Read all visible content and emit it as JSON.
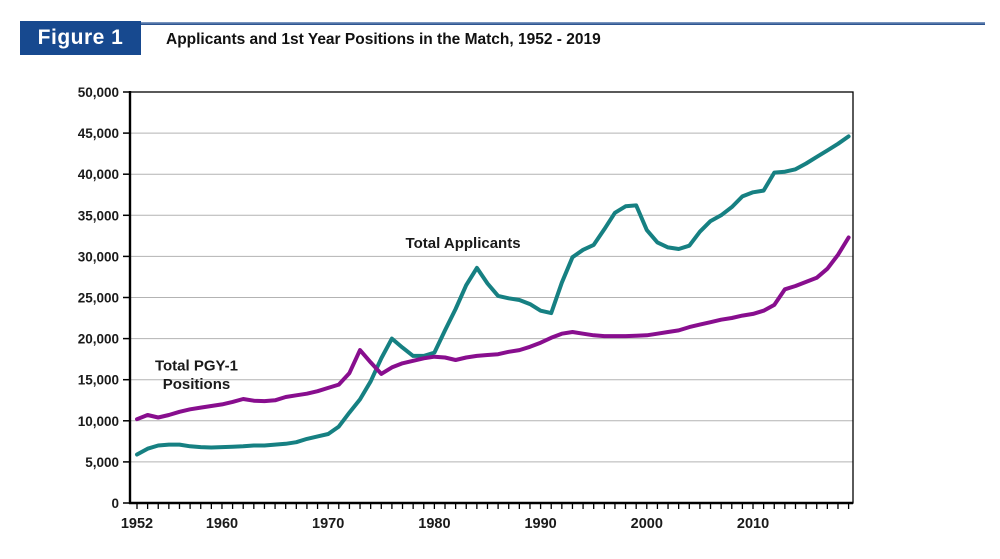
{
  "header": {
    "figure_label": "Figure 1",
    "title": "Applicants and 1st Year Positions in the Match, 1952 - 2019",
    "badge_color": "#17498f"
  },
  "chart_data": {
    "type": "line",
    "title": "Applicants and 1st Year Positions in the Match, 1952 - 2019",
    "xlabel": "",
    "ylabel": "",
    "ylim": [
      0,
      50000
    ],
    "yticks": [
      0,
      5000,
      10000,
      15000,
      20000,
      25000,
      30000,
      35000,
      40000,
      45000,
      50000
    ],
    "xticks": [
      1952,
      1960,
      1970,
      1980,
      1990,
      2000,
      2010
    ],
    "grid": true,
    "legend_position": "none",
    "colors": {
      "grid": "#b3b3b3",
      "axis": "#000000"
    },
    "x": [
      1952,
      1953,
      1954,
      1955,
      1956,
      1957,
      1958,
      1959,
      1960,
      1961,
      1962,
      1963,
      1964,
      1965,
      1966,
      1967,
      1968,
      1969,
      1970,
      1971,
      1972,
      1973,
      1974,
      1975,
      1976,
      1977,
      1978,
      1979,
      1980,
      1981,
      1982,
      1983,
      1984,
      1985,
      1986,
      1987,
      1988,
      1989,
      1990,
      1991,
      1992,
      1993,
      1994,
      1995,
      1996,
      1997,
      1998,
      1999,
      2000,
      2001,
      2002,
      2003,
      2004,
      2005,
      2006,
      2007,
      2008,
      2009,
      2010,
      2011,
      2012,
      2013,
      2014,
      2015,
      2016,
      2017,
      2018,
      2019
    ],
    "series": [
      {
        "name": "Total Applicants",
        "color": "#168082",
        "values": [
          5900,
          6600,
          7000,
          7100,
          7100,
          6900,
          6800,
          6750,
          6800,
          6850,
          6900,
          7000,
          7000,
          7100,
          7200,
          7400,
          7800,
          8100,
          8400,
          9300,
          11000,
          12600,
          14800,
          17600,
          20000,
          18900,
          17900,
          17900,
          18300,
          21000,
          23600,
          26500,
          28600,
          26700,
          25200,
          24900,
          24700,
          24200,
          23400,
          23100,
          26800,
          29900,
          30800,
          31400,
          33300,
          35300,
          36100,
          36200,
          33200,
          31700,
          31100,
          30900,
          31300,
          33000,
          34300,
          35000,
          36000,
          37300,
          37800,
          38000,
          40200,
          40300,
          40600,
          41300,
          42100,
          42900,
          43700,
          44600
        ]
      },
      {
        "name": "Total PGY-1 Positions",
        "color": "#880E8E",
        "values": [
          10200,
          10700,
          10400,
          10700,
          11100,
          11400,
          11600,
          11800,
          12000,
          12300,
          12650,
          12450,
          12400,
          12500,
          12900,
          13100,
          13300,
          13600,
          14000,
          14400,
          15800,
          18600,
          17100,
          15700,
          16500,
          17000,
          17300,
          17600,
          17800,
          17700,
          17400,
          17700,
          17900,
          18000,
          18100,
          18400,
          18600,
          19000,
          19500,
          20100,
          20600,
          20800,
          20600,
          20400,
          20300,
          20300,
          20300,
          20350,
          20400,
          20600,
          20800,
          21000,
          21400,
          21700,
          22000,
          22300,
          22500,
          22800,
          23000,
          23400,
          24100,
          26000,
          26400,
          26900,
          27400,
          28500,
          30200,
          32300
        ]
      }
    ],
    "annotations": [
      {
        "name": "total-applicants",
        "lines": [
          "Total Applicants"
        ],
        "year": 1982.7,
        "value": 31600
      },
      {
        "name": "total-pgy-1-positions",
        "lines": [
          "Total PGY-1",
          "Positions"
        ],
        "year": 1957.6,
        "value": 16700
      }
    ]
  }
}
